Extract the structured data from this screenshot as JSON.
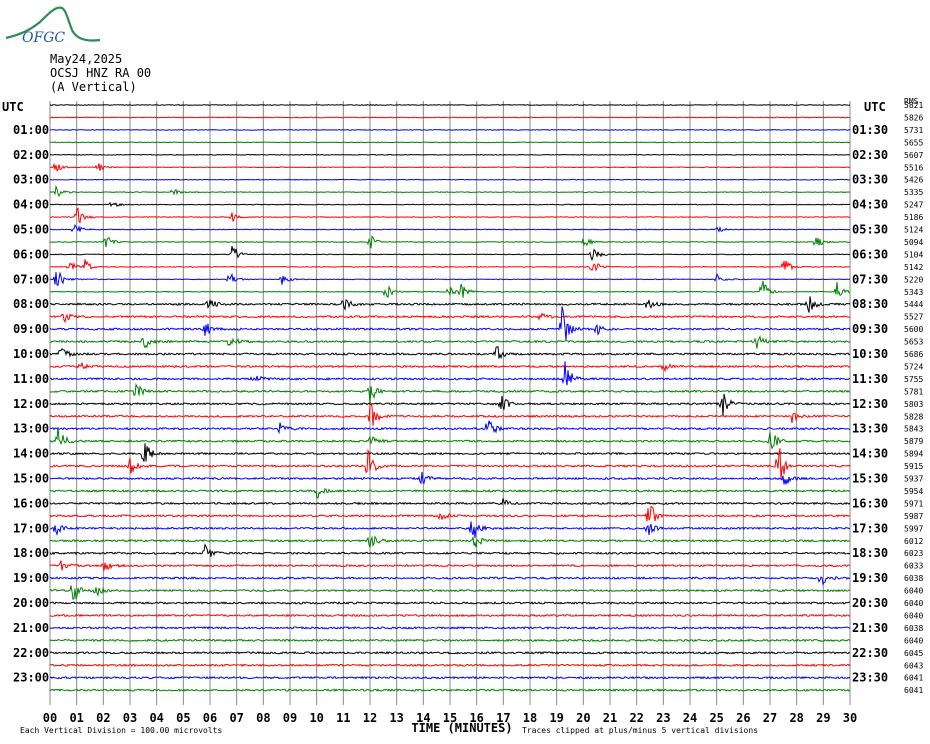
{
  "header": {
    "logo_text": "OFGC",
    "date": "May24,2025",
    "station": "OCSJ HNZ RA 00",
    "component": "(A Vertical)"
  },
  "colors": {
    "cycle": [
      "#000000",
      "#ff0000",
      "#0000ff",
      "#008000"
    ],
    "grid": "#888888",
    "logo": "#2e8b57",
    "logo_text": "#1e5aa8"
  },
  "chart_data": {
    "type": "line",
    "title": "",
    "xlabel": "TIME (MINUTES)",
    "left_axis_title": "UTC",
    "right_axis_title": "UTC",
    "xlim": [
      0,
      30
    ],
    "x_ticks": [
      "00",
      "01",
      "02",
      "03",
      "04",
      "05",
      "06",
      "07",
      "08",
      "09",
      "10",
      "11",
      "12",
      "13",
      "14",
      "15",
      "16",
      "17",
      "18",
      "19",
      "20",
      "21",
      "22",
      "23",
      "24",
      "25",
      "26",
      "27",
      "28",
      "29",
      "30"
    ],
    "left_hour_labels": [
      "01:00",
      "02:00",
      "03:00",
      "04:00",
      "05:00",
      "06:00",
      "07:00",
      "08:00",
      "09:00",
      "10:00",
      "11:00",
      "12:00",
      "13:00",
      "14:00",
      "15:00",
      "16:00",
      "17:00",
      "18:00",
      "19:00",
      "20:00",
      "21:00",
      "22:00",
      "23:00"
    ],
    "right_hour_labels": [
      "01:30",
      "02:30",
      "03:30",
      "04:30",
      "05:30",
      "06:30",
      "07:30",
      "08:30",
      "09:30",
      "10:30",
      "11:30",
      "12:30",
      "13:30",
      "14:30",
      "15:30",
      "16:30",
      "17:30",
      "18:30",
      "19:30",
      "20:30",
      "21:30",
      "22:30",
      "23:30"
    ],
    "right_counts_title": "RMS",
    "right_counts": [
      "5821",
      "5826",
      "5731",
      "5655",
      "5607",
      "5516",
      "5426",
      "5335",
      "5247",
      "5186",
      "5124",
      "5094",
      "5104",
      "5142",
      "5220",
      "5343",
      "5444",
      "5527",
      "5600",
      "5653",
      "5686",
      "5724",
      "5755",
      "5781",
      "5803",
      "5828",
      "5843",
      "5879",
      "5894",
      "5915",
      "5937",
      "5954",
      "5971",
      "5987",
      "5997",
      "6012",
      "6023",
      "6033",
      "6038",
      "6040",
      "6040",
      "6040",
      "6038",
      "6040",
      "6045",
      "6043",
      "6041",
      "6041"
    ],
    "trace_count": 48,
    "events": [
      {
        "trace": 5,
        "minute": 0.2,
        "amp": 8
      },
      {
        "trace": 5,
        "minute": 1.8,
        "amp": 6
      },
      {
        "trace": 7,
        "minute": 0.2,
        "amp": 8
      },
      {
        "trace": 7,
        "minute": 4.6,
        "amp": 5
      },
      {
        "trace": 8,
        "minute": 2.3,
        "amp": 5
      },
      {
        "trace": 9,
        "minute": 1.0,
        "amp": 12
      },
      {
        "trace": 9,
        "minute": 6.8,
        "amp": 6
      },
      {
        "trace": 10,
        "minute": 0.9,
        "amp": 8
      },
      {
        "trace": 10,
        "minute": 25.0,
        "amp": 5
      },
      {
        "trace": 11,
        "minute": 2.1,
        "amp": 8
      },
      {
        "trace": 11,
        "minute": 12.0,
        "amp": 8
      },
      {
        "trace": 11,
        "minute": 20.0,
        "amp": 10
      },
      {
        "trace": 11,
        "minute": 28.7,
        "amp": 8
      },
      {
        "trace": 12,
        "minute": 6.8,
        "amp": 14
      },
      {
        "trace": 12,
        "minute": 20.3,
        "amp": 12
      },
      {
        "trace": 13,
        "minute": 0.7,
        "amp": 10
      },
      {
        "trace": 13,
        "minute": 1.3,
        "amp": 8
      },
      {
        "trace": 13,
        "minute": 20.3,
        "amp": 12
      },
      {
        "trace": 13,
        "minute": 27.5,
        "amp": 12
      },
      {
        "trace": 14,
        "minute": 0.2,
        "amp": 18
      },
      {
        "trace": 14,
        "minute": 6.7,
        "amp": 10
      },
      {
        "trace": 14,
        "minute": 8.7,
        "amp": 8
      },
      {
        "trace": 14,
        "minute": 25.0,
        "amp": 6
      },
      {
        "trace": 15,
        "minute": 12.6,
        "amp": 10
      },
      {
        "trace": 15,
        "minute": 14.9,
        "amp": 8
      },
      {
        "trace": 15,
        "minute": 15.4,
        "amp": 10
      },
      {
        "trace": 15,
        "minute": 26.7,
        "amp": 14
      },
      {
        "trace": 15,
        "minute": 29.5,
        "amp": 12
      },
      {
        "trace": 16,
        "minute": 5.9,
        "amp": 10
      },
      {
        "trace": 16,
        "minute": 11.0,
        "amp": 10
      },
      {
        "trace": 16,
        "minute": 22.4,
        "amp": 8
      },
      {
        "trace": 16,
        "minute": 28.4,
        "amp": 14
      },
      {
        "trace": 17,
        "minute": 0.5,
        "amp": 8
      },
      {
        "trace": 17,
        "minute": 18.4,
        "amp": 6
      },
      {
        "trace": 18,
        "minute": 5.8,
        "amp": 10
      },
      {
        "trace": 18,
        "minute": 19.2,
        "amp": 30
      },
      {
        "trace": 18,
        "minute": 20.5,
        "amp": 6
      },
      {
        "trace": 19,
        "minute": 3.5,
        "amp": 10
      },
      {
        "trace": 19,
        "minute": 6.7,
        "amp": 10
      },
      {
        "trace": 19,
        "minute": 26.5,
        "amp": 10
      },
      {
        "trace": 20,
        "minute": 0.4,
        "amp": 10
      },
      {
        "trace": 20,
        "minute": 16.7,
        "amp": 12
      },
      {
        "trace": 21,
        "minute": 1.1,
        "amp": 6
      },
      {
        "trace": 21,
        "minute": 23.0,
        "amp": 6
      },
      {
        "trace": 22,
        "minute": 7.6,
        "amp": 10
      },
      {
        "trace": 22,
        "minute": 19.3,
        "amp": 22
      },
      {
        "trace": 23,
        "minute": 3.2,
        "amp": 10
      },
      {
        "trace": 23,
        "minute": 12.0,
        "amp": 12
      },
      {
        "trace": 24,
        "minute": 16.9,
        "amp": 12
      },
      {
        "trace": 24,
        "minute": 25.2,
        "amp": 16
      },
      {
        "trace": 25,
        "minute": 12.0,
        "amp": 18
      },
      {
        "trace": 25,
        "minute": 27.8,
        "amp": 8
      },
      {
        "trace": 26,
        "minute": 16.4,
        "amp": 16
      },
      {
        "trace": 26,
        "minute": 8.6,
        "amp": 10
      },
      {
        "trace": 27,
        "minute": 0.3,
        "amp": 18
      },
      {
        "trace": 27,
        "minute": 12.0,
        "amp": 12
      },
      {
        "trace": 27,
        "minute": 27.0,
        "amp": 16
      },
      {
        "trace": 28,
        "minute": 3.5,
        "amp": 18
      },
      {
        "trace": 29,
        "minute": 3.0,
        "amp": 10
      },
      {
        "trace": 29,
        "minute": 11.9,
        "amp": 22
      },
      {
        "trace": 29,
        "minute": 27.3,
        "amp": 26
      },
      {
        "trace": 30,
        "minute": 13.9,
        "amp": 10
      },
      {
        "trace": 30,
        "minute": 27.5,
        "amp": 12
      },
      {
        "trace": 31,
        "minute": 10.0,
        "amp": 8
      },
      {
        "trace": 32,
        "minute": 16.9,
        "amp": 8
      },
      {
        "trace": 33,
        "minute": 22.4,
        "amp": 24
      },
      {
        "trace": 33,
        "minute": 14.6,
        "amp": 8
      },
      {
        "trace": 34,
        "minute": 0.2,
        "amp": 8
      },
      {
        "trace": 34,
        "minute": 15.8,
        "amp": 20
      },
      {
        "trace": 34,
        "minute": 22.4,
        "amp": 10
      },
      {
        "trace": 35,
        "minute": 12.0,
        "amp": 10
      },
      {
        "trace": 35,
        "minute": 15.9,
        "amp": 10
      },
      {
        "trace": 36,
        "minute": 5.8,
        "amp": 10
      },
      {
        "trace": 37,
        "minute": 0.4,
        "amp": 6
      },
      {
        "trace": 37,
        "minute": 2.0,
        "amp": 8
      },
      {
        "trace": 38,
        "minute": 28.9,
        "amp": 10
      },
      {
        "trace": 39,
        "minute": 0.8,
        "amp": 18
      },
      {
        "trace": 39,
        "minute": 1.7,
        "amp": 8
      }
    ]
  },
  "footer": {
    "division": "Each Vertical Division =  100.00 microvolts",
    "clip": "Traces clipped at plus/minus 5 vertical divisions"
  }
}
